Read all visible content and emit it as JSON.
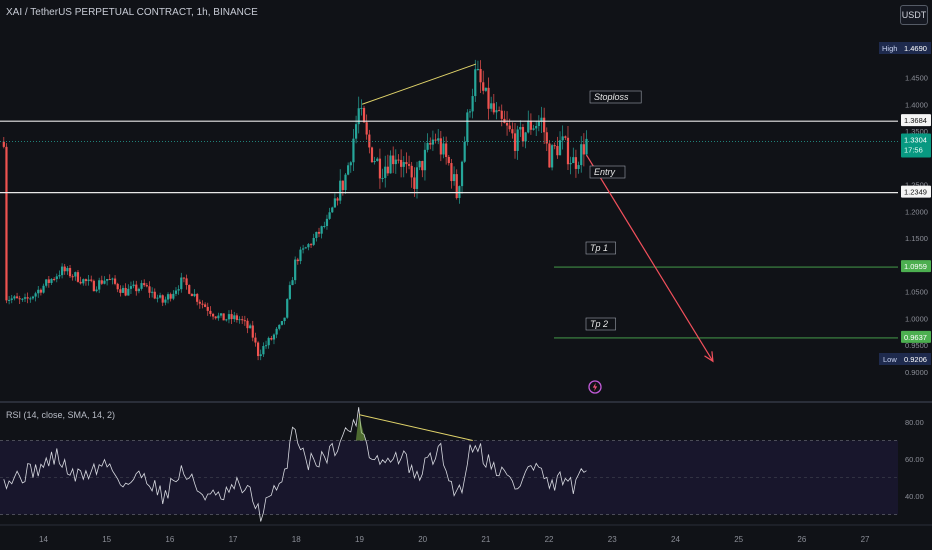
{
  "header": {
    "title": "XAI / TetherUS PERPETUAL CONTRACT, 1h, BINANCE",
    "currency_button": "USDT"
  },
  "icons": {
    "alert": "lightning-bolt-icon"
  },
  "colors": {
    "up": "#26a69a",
    "down": "#ef5350",
    "trend": "#e0d36a",
    "arrow": "#f2505c",
    "tp_line": "#4caf50",
    "rsi": "#d7d9e0"
  },
  "price_axis": {
    "ticks": [
      "1.5000",
      "1.4500",
      "1.4000",
      "1.3500",
      "1.2500",
      "1.2000",
      "1.1500",
      "1.0500",
      "1.0000",
      "0.9500",
      "0.9000"
    ],
    "tick_values": [
      1.5,
      1.45,
      1.4,
      1.35,
      1.25,
      1.2,
      1.15,
      1.05,
      1.0,
      0.95,
      0.9
    ],
    "high": {
      "label": "High",
      "value": "1.4690"
    },
    "low": {
      "label": "Low",
      "value": "0.9206"
    },
    "current": {
      "value": "1.3304",
      "countdown": "17:56"
    },
    "stoploss_level": "1.3684",
    "entry_level": "1.2349",
    "tp1_level": "1.0959",
    "tp2_level": "0.9637"
  },
  "annotations": {
    "stoploss": "Stoploss",
    "entry": "Entry",
    "tp1": "Tp 1",
    "tp2": "Tp 2"
  },
  "time_axis": {
    "ticks": [
      "14",
      "15",
      "16",
      "17",
      "18",
      "19",
      "20",
      "21",
      "22",
      "23",
      "24",
      "25",
      "26",
      "27"
    ]
  },
  "rsi": {
    "title": "RSI (14, close, SMA, 14, 2)",
    "ticks": [
      "80.00",
      "60.00",
      "40.00"
    ],
    "tick_values": [
      80,
      60,
      40
    ],
    "upper_band": 70,
    "lower_band": 30
  },
  "chart_data": {
    "type": "candlestick",
    "title": "XAI / TetherUS PERPETUAL CONTRACT, 1h, BINANCE",
    "x_range_days": [
      "13.5",
      "27.3"
    ],
    "ylim": [
      0.88,
      1.52
    ],
    "price_path": [
      [
        13.4,
        1.04
      ],
      [
        13.7,
        1.03
      ],
      [
        14.0,
        1.06
      ],
      [
        14.3,
        1.09
      ],
      [
        14.5,
        1.08
      ],
      [
        14.8,
        1.06
      ],
      [
        15.0,
        1.075
      ],
      [
        15.3,
        1.05
      ],
      [
        15.6,
        1.06
      ],
      [
        15.9,
        1.03
      ],
      [
        16.2,
        1.07
      ],
      [
        16.5,
        1.03
      ],
      [
        16.8,
        1.0
      ],
      [
        17.1,
        1.0
      ],
      [
        17.3,
        0.975
      ],
      [
        17.4,
        0.935
      ],
      [
        17.6,
        0.96
      ],
      [
        17.8,
        0.99
      ],
      [
        18.0,
        1.11
      ],
      [
        18.3,
        1.15
      ],
      [
        18.5,
        1.18
      ],
      [
        18.8,
        1.27
      ],
      [
        19.0,
        1.39
      ],
      [
        19.15,
        1.32
      ],
      [
        19.35,
        1.28
      ],
      [
        19.6,
        1.31
      ],
      [
        19.85,
        1.25
      ],
      [
        20.0,
        1.29
      ],
      [
        20.2,
        1.34
      ],
      [
        20.45,
        1.28
      ],
      [
        20.55,
        1.23
      ],
      [
        20.75,
        1.4
      ],
      [
        20.85,
        1.46
      ],
      [
        21.0,
        1.41
      ],
      [
        21.2,
        1.37
      ],
      [
        21.5,
        1.33
      ],
      [
        21.7,
        1.36
      ],
      [
        21.9,
        1.37
      ],
      [
        22.0,
        1.3
      ],
      [
        22.2,
        1.33
      ],
      [
        22.4,
        1.29
      ],
      [
        22.6,
        1.33
      ]
    ],
    "rsi_path": [
      [
        13.4,
        48
      ],
      [
        13.7,
        52
      ],
      [
        14.0,
        56
      ],
      [
        14.2,
        62
      ],
      [
        14.5,
        50
      ],
      [
        14.8,
        54
      ],
      [
        15.0,
        58
      ],
      [
        15.3,
        46
      ],
      [
        15.6,
        52
      ],
      [
        15.9,
        40
      ],
      [
        16.2,
        54
      ],
      [
        16.5,
        42
      ],
      [
        16.8,
        38
      ],
      [
        17.1,
        46
      ],
      [
        17.3,
        40
      ],
      [
        17.45,
        30
      ],
      [
        17.6,
        40
      ],
      [
        17.8,
        46
      ],
      [
        17.95,
        78
      ],
      [
        18.2,
        58
      ],
      [
        18.5,
        62
      ],
      [
        18.8,
        74
      ],
      [
        19.0,
        84
      ],
      [
        19.15,
        64
      ],
      [
        19.4,
        58
      ],
      [
        19.7,
        62
      ],
      [
        19.9,
        48
      ],
      [
        20.1,
        60
      ],
      [
        20.3,
        64
      ],
      [
        20.45,
        46
      ],
      [
        20.6,
        42
      ],
      [
        20.75,
        64
      ],
      [
        20.85,
        70
      ],
      [
        21.0,
        60
      ],
      [
        21.3,
        52
      ],
      [
        21.5,
        44
      ],
      [
        21.7,
        56
      ],
      [
        21.9,
        54
      ],
      [
        22.0,
        42
      ],
      [
        22.2,
        50
      ],
      [
        22.4,
        44
      ],
      [
        22.6,
        54
      ]
    ],
    "trendlines": {
      "price": [
        [
          19.05,
          1.4
        ],
        [
          20.85,
          1.475
        ]
      ],
      "rsi": [
        [
          19.0,
          84
        ],
        [
          20.8,
          70
        ]
      ]
    },
    "projection_arrow": [
      [
        22.6,
        1.305
      ],
      [
        24.6,
        0.92
      ]
    ]
  }
}
